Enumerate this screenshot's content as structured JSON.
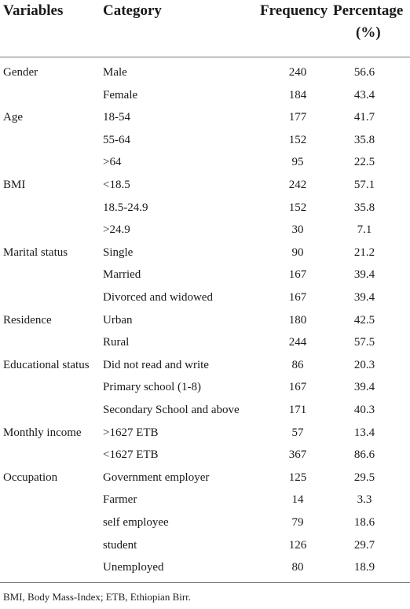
{
  "headers": {
    "variables": "Variables",
    "category": "Category",
    "frequency": "Frequency",
    "percentage_line1": "Percentage",
    "percentage_line2": "(%)"
  },
  "rows": [
    {
      "variable": "Gender",
      "category": "Male",
      "frequency": "240",
      "percentage": "56.6"
    },
    {
      "variable": "",
      "category": "Female",
      "frequency": "184",
      "percentage": "43.4"
    },
    {
      "variable": "Age",
      "category": "18-54",
      "frequency": "177",
      "percentage": "41.7"
    },
    {
      "variable": "",
      "category": "55-64",
      "frequency": "152",
      "percentage": "35.8"
    },
    {
      "variable": "",
      "category": ">64",
      "frequency": "95",
      "percentage": "22.5"
    },
    {
      "variable": "BMI",
      "category": "<18.5",
      "frequency": "242",
      "percentage": "57.1"
    },
    {
      "variable": "",
      "category": "18.5-24.9",
      "frequency": "152",
      "percentage": "35.8"
    },
    {
      "variable": "",
      "category": ">24.9",
      "frequency": "30",
      "percentage": "7.1"
    },
    {
      "variable": "Marital status",
      "category": "Single",
      "frequency": "90",
      "percentage": "21.2"
    },
    {
      "variable": "",
      "category": "Married",
      "frequency": "167",
      "percentage": "39.4"
    },
    {
      "variable": "",
      "category": "Divorced and widowed",
      "frequency": "167",
      "percentage": "39.4"
    },
    {
      "variable": "Residence",
      "category": "Urban",
      "frequency": "180",
      "percentage": "42.5"
    },
    {
      "variable": "",
      "category": "Rural",
      "frequency": "244",
      "percentage": "57.5"
    },
    {
      "variable": "Educational status",
      "category": "Did not read and write",
      "frequency": "86",
      "percentage": "20.3"
    },
    {
      "variable": "",
      "category": "Primary school (1-8)",
      "frequency": "167",
      "percentage": "39.4"
    },
    {
      "variable": "",
      "category": "Secondary School and above",
      "frequency": "171",
      "percentage": "40.3"
    },
    {
      "variable": "Monthly income",
      "category": ">1627 ETB",
      "frequency": "57",
      "percentage": "13.4"
    },
    {
      "variable": "",
      "category": "<1627 ETB",
      "frequency": "367",
      "percentage": "86.6"
    },
    {
      "variable": "Occupation",
      "category": "Government employer",
      "frequency": "125",
      "percentage": "29.5"
    },
    {
      "variable": "",
      "category": "Farmer",
      "frequency": "14",
      "percentage": "3.3"
    },
    {
      "variable": "",
      "category": "self employee",
      "frequency": "79",
      "percentage": "18.6"
    },
    {
      "variable": "",
      "category": "student",
      "frequency": "126",
      "percentage": "29.7"
    },
    {
      "variable": "",
      "category": "Unemployed",
      "frequency": "80",
      "percentage": "18.9"
    }
  ],
  "footnote": "BMI, Body Mass-Index; ETB, Ethiopian Birr."
}
